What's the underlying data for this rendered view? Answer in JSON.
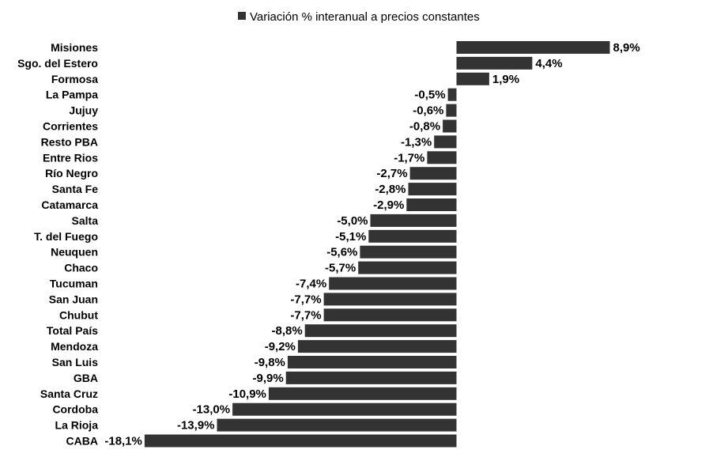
{
  "chart_data": {
    "type": "bar",
    "orientation": "horizontal",
    "categories": [
      "Misiones",
      "Sgo. del Estero",
      "Formosa",
      "La Pampa",
      "Jujuy",
      "Corrientes",
      "Resto PBA",
      "Entre Rios",
      "Río Negro",
      "Santa Fe",
      "Catamarca",
      "Salta",
      "T. del Fuego",
      "Neuquen",
      "Chaco",
      "Tucuman",
      "San Juan",
      "Chubut",
      "Total País",
      "Mendoza",
      "San Luis",
      "GBA",
      "Santa Cruz",
      "Cordoba",
      "La Rioja",
      "CABA"
    ],
    "series": [
      {
        "name": "Variación % interanual a precios constantes",
        "values": [
          8.9,
          4.4,
          1.9,
          -0.5,
          -0.6,
          -0.8,
          -1.3,
          -1.7,
          -2.7,
          -2.8,
          -2.9,
          -5.0,
          -5.1,
          -5.6,
          -5.7,
          -7.4,
          -7.7,
          -7.7,
          -8.8,
          -9.2,
          -9.8,
          -9.9,
          -10.9,
          -13.0,
          -13.9,
          -18.1
        ],
        "value_labels": [
          "8,9%",
          "4,4%",
          "1,9%",
          "-0,5%",
          "-0,6%",
          "-0,8%",
          "-1,3%",
          "-1,7%",
          "-2,7%",
          "-2,8%",
          "-2,9%",
          "-5,0%",
          "-5,1%",
          "-5,6%",
          "-5,7%",
          "-7,4%",
          "-7,7%",
          "-7,7%",
          "-8,8%",
          "-9,2%",
          "-9,8%",
          "-9,9%",
          "-10,9%",
          "-13,0%",
          "-13,9%",
          "-18,1%"
        ],
        "color": "#333333"
      }
    ],
    "title": "",
    "xlabel": "",
    "ylabel": "",
    "xlim": [
      -18.1,
      8.9
    ],
    "grid": false,
    "legend_position": "top-center"
  }
}
